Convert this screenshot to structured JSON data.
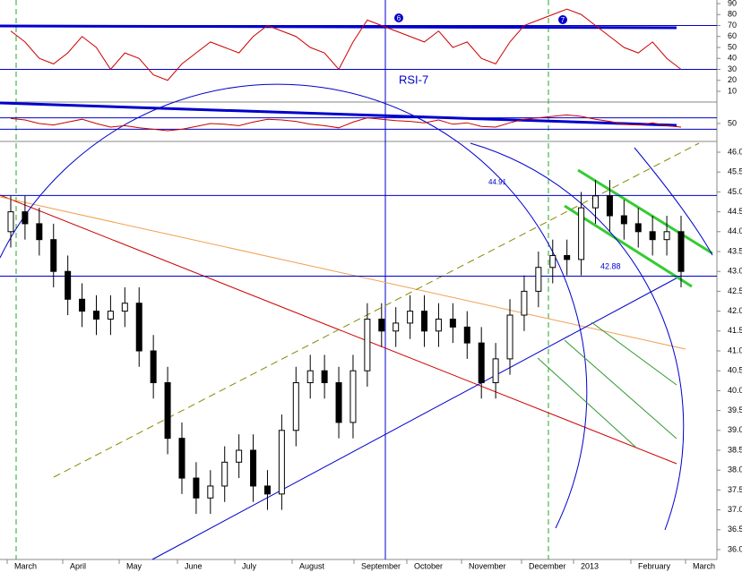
{
  "chart_data": [
    {
      "type": "candlestick",
      "name": "price",
      "x_labels": [
        "March",
        "April",
        "May",
        "June",
        "July",
        "August",
        "September",
        "October",
        "November",
        "December",
        "2013",
        "February",
        "March"
      ],
      "open": [
        44.0,
        44.5,
        44.2,
        43.8,
        43.0,
        42.3,
        42.0,
        41.8,
        42.0,
        42.2,
        41.0,
        40.2,
        38.8,
        37.8,
        37.3,
        37.6,
        38.2,
        38.5,
        37.6,
        37.4,
        39.0,
        40.2,
        40.5,
        40.2,
        39.2,
        40.5,
        41.8,
        41.5,
        41.7,
        42.0,
        41.5,
        41.8,
        41.6,
        41.2,
        40.2,
        40.8,
        41.9,
        42.5,
        43.1,
        43.4,
        43.3,
        44.6,
        44.9,
        44.4,
        44.2,
        44.0,
        43.8,
        44.0
      ],
      "high": [
        44.9,
        44.9,
        44.6,
        44.2,
        43.4,
        42.7,
        42.4,
        42.4,
        42.6,
        42.6,
        41.4,
        40.6,
        39.2,
        38.2,
        38.0,
        38.6,
        38.9,
        38.9,
        38.0,
        39.4,
        40.6,
        40.9,
        40.9,
        40.6,
        40.9,
        42.2,
        42.2,
        42.1,
        42.4,
        42.4,
        42.2,
        42.2,
        42.0,
        41.6,
        41.2,
        42.3,
        42.9,
        43.5,
        43.8,
        43.8,
        45.0,
        45.3,
        45.3,
        44.8,
        44.6,
        44.4,
        44.4,
        44.4
      ],
      "low": [
        43.6,
        43.8,
        43.4,
        42.6,
        41.9,
        41.6,
        41.4,
        41.4,
        41.6,
        40.6,
        39.8,
        38.4,
        37.4,
        36.9,
        36.9,
        37.2,
        37.8,
        37.2,
        37.0,
        37.0,
        38.6,
        39.8,
        39.8,
        38.8,
        38.8,
        40.1,
        41.1,
        41.1,
        41.3,
        41.1,
        41.1,
        41.2,
        40.8,
        39.8,
        39.8,
        40.4,
        41.5,
        42.1,
        42.7,
        42.9,
        42.9,
        44.2,
        44.0,
        43.8,
        43.6,
        43.4,
        43.4,
        42.6
      ],
      "close": [
        44.5,
        44.2,
        43.8,
        43.0,
        42.3,
        42.0,
        41.8,
        42.0,
        42.2,
        41.0,
        40.2,
        38.8,
        37.8,
        37.3,
        37.6,
        38.2,
        38.5,
        37.6,
        37.4,
        39.0,
        40.2,
        40.5,
        40.2,
        39.2,
        40.5,
        41.8,
        41.5,
        41.7,
        42.0,
        41.5,
        41.8,
        41.6,
        41.2,
        40.2,
        40.8,
        41.9,
        42.5,
        43.1,
        43.4,
        43.3,
        44.6,
        44.9,
        44.4,
        44.2,
        44.0,
        43.8,
        44.0,
        43.0
      ],
      "ylim": [
        35.8,
        46.2
      ],
      "yticks": [
        {
          "value": 36,
          "label": "36.0"
        },
        {
          "value": 36.5,
          "label": "36.5"
        },
        {
          "value": 37,
          "label": "37.0"
        },
        {
          "value": 37.5,
          "label": "37.5"
        },
        {
          "value": 38,
          "label": "38.0"
        },
        {
          "value": 38.5,
          "label": "38.5"
        },
        {
          "value": 39,
          "label": "39.0"
        },
        {
          "value": 39.5,
          "label": "39.5"
        },
        {
          "value": 40,
          "label": "40.0"
        },
        {
          "value": 40.5,
          "label": "40.5"
        },
        {
          "value": 41,
          "label": "41.0"
        },
        {
          "value": 41.5,
          "label": "41.5"
        },
        {
          "value": 42,
          "label": "42.0"
        },
        {
          "value": 42.5,
          "label": "42.5"
        },
        {
          "value": 43,
          "label": "43.0"
        },
        {
          "value": 43.5,
          "label": "43.5"
        },
        {
          "value": 44,
          "label": "44.0"
        },
        {
          "value": 44.5,
          "label": "44.5"
        },
        {
          "value": 45,
          "label": "45.0"
        },
        {
          "value": 45.5,
          "label": "45.5"
        },
        {
          "value": 46,
          "label": "46.0"
        }
      ],
      "annotations": [
        {
          "text": "44.91",
          "value": 44.91
        },
        {
          "text": "42.88",
          "value": 42.88
        }
      ]
    },
    {
      "type": "line",
      "name": "RSI-7",
      "color": "#cc0000",
      "values": [
        65,
        55,
        40,
        35,
        45,
        60,
        50,
        30,
        45,
        40,
        25,
        20,
        35,
        45,
        55,
        50,
        45,
        60,
        70,
        65,
        60,
        50,
        45,
        30,
        55,
        75,
        70,
        65,
        60,
        55,
        65,
        50,
        55,
        40,
        35,
        55,
        70,
        75,
        80,
        85,
        80,
        70,
        60,
        50,
        45,
        55,
        40,
        30
      ],
      "ylim": [
        10,
        90
      ],
      "yticks": [
        10,
        20,
        30,
        40,
        50,
        60,
        70,
        80,
        90
      ],
      "levels": [
        70,
        30
      ],
      "markers": [
        "6",
        "7"
      ]
    },
    {
      "type": "line",
      "color": "#cc0000",
      "values": [
        57,
        55,
        50,
        48,
        52,
        56,
        50,
        45,
        47,
        44,
        42,
        40,
        42,
        46,
        50,
        49,
        47,
        52,
        56,
        55,
        53,
        49,
        47,
        44,
        52,
        58,
        56,
        54,
        53,
        51,
        55,
        49,
        51,
        46,
        45,
        51,
        56,
        58,
        60,
        62,
        60,
        56,
        53,
        49,
        48,
        51,
        47,
        45
      ],
      "ylim": [
        35,
        65
      ],
      "yticks": [
        50
      ]
    }
  ]
}
